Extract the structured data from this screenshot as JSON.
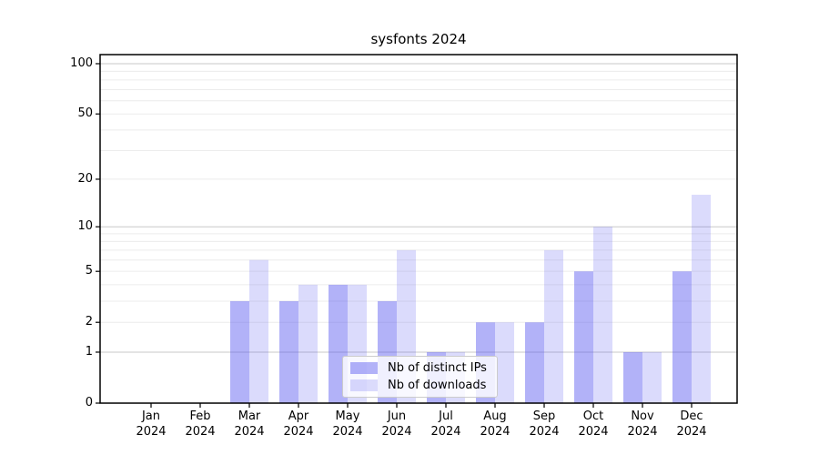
{
  "chart_data": {
    "type": "bar",
    "title": "sysfonts 2024",
    "categories": [
      "Jan",
      "Feb",
      "Mar",
      "Apr",
      "May",
      "Jun",
      "Jul",
      "Aug",
      "Sep",
      "Oct",
      "Nov",
      "Dec"
    ],
    "x_tick_second_line": "2024",
    "series": [
      {
        "name": "Nb of distinct IPs",
        "values": [
          0,
          0,
          3,
          3,
          4,
          3,
          1,
          2,
          2,
          5,
          1,
          5
        ]
      },
      {
        "name": "Nb of downloads",
        "values": [
          0,
          0,
          6,
          4,
          4,
          7,
          1,
          2,
          7,
          10,
          1,
          16
        ]
      }
    ],
    "y_ticks": [
      0,
      1,
      2,
      5,
      10,
      20,
      50,
      100
    ],
    "y_minor_gridlines": [
      2,
      3,
      4,
      5,
      6,
      7,
      8,
      9,
      20,
      30,
      40,
      50,
      60,
      70,
      80,
      90
    ],
    "y_major_gridlines": [
      1,
      10,
      100
    ],
    "scale": "log1p",
    "ylim": [
      0,
      113
    ],
    "grid": "horizontal",
    "legend_position": "inside-bottom-center"
  },
  "colors": {
    "bar_base": "#5555f0",
    "ip_alpha": 0.45,
    "dl_alpha": 0.21,
    "grid_minor": "#ececec",
    "grid_major": "#c8c8c8",
    "axis": "#000000",
    "legend_border": "#cccccc",
    "legend_bg": "rgba(255,255,255,0.8)",
    "text": "#000000"
  }
}
